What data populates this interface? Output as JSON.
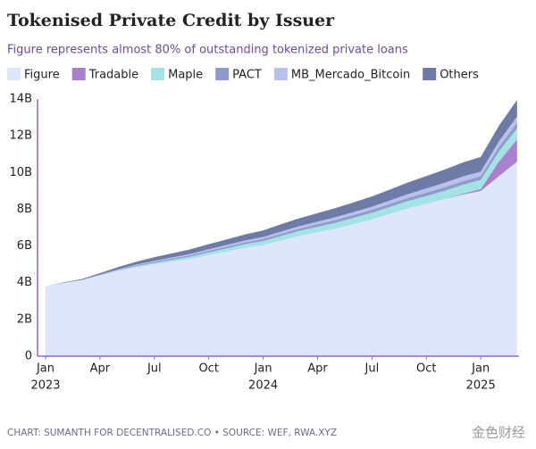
{
  "chart_data": {
    "type": "stacked_area",
    "title": "Tokenised Private Credit by Issuer",
    "subtitle": "Figure represents almost 80% of outstanding tokenized private loans",
    "source": "CHART: SUMANTH FOR DECENTRALISED.CO • SOURCE: WEF, RWA.XYZ",
    "watermark": "金色财经",
    "x": [
      "2023-01",
      "2023-02",
      "2023-03",
      "2023-04",
      "2023-05",
      "2023-06",
      "2023-07",
      "2023-08",
      "2023-09",
      "2023-10",
      "2023-11",
      "2023-12",
      "2024-01",
      "2024-02",
      "2024-03",
      "2024-04",
      "2024-05",
      "2024-06",
      "2024-07",
      "2024-08",
      "2024-09",
      "2024-10",
      "2024-11",
      "2024-12",
      "2025-01",
      "2025-02",
      "2025-03"
    ],
    "series": [
      {
        "name": "Figure",
        "color": "#dde6fa",
        "values": [
          3.8,
          4.0,
          4.15,
          4.4,
          4.65,
          4.85,
          5.0,
          5.15,
          5.3,
          5.5,
          5.7,
          5.9,
          6.05,
          6.3,
          6.55,
          6.75,
          6.95,
          7.2,
          7.45,
          7.75,
          8.05,
          8.3,
          8.55,
          8.8,
          9.0,
          9.8,
          10.6
        ]
      },
      {
        "name": "Tradable",
        "color": "#a97fce",
        "values": [
          0,
          0,
          0,
          0,
          0,
          0,
          0,
          0,
          0,
          0,
          0,
          0,
          0,
          0,
          0,
          0,
          0,
          0,
          0,
          0,
          0,
          0,
          0,
          0.05,
          0.1,
          0.8,
          1.2
        ]
      },
      {
        "name": "Maple",
        "color": "#a3e3e3",
        "values": [
          0,
          0,
          0,
          0,
          0.02,
          0.05,
          0.08,
          0.1,
          0.12,
          0.15,
          0.17,
          0.2,
          0.22,
          0.25,
          0.27,
          0.3,
          0.32,
          0.34,
          0.36,
          0.38,
          0.4,
          0.42,
          0.45,
          0.48,
          0.5,
          0.55,
          0.6
        ]
      },
      {
        "name": "PACT",
        "color": "#8f9ccb",
        "values": [
          0,
          0,
          0,
          0.02,
          0.03,
          0.05,
          0.06,
          0.07,
          0.08,
          0.09,
          0.1,
          0.1,
          0.12,
          0.12,
          0.13,
          0.14,
          0.15,
          0.15,
          0.16,
          0.17,
          0.18,
          0.19,
          0.2,
          0.2,
          0.2,
          0.25,
          0.3
        ]
      },
      {
        "name": "MB_Mercado_Bitcoin",
        "color": "#b7c1ec",
        "values": [
          0,
          0,
          0,
          0.02,
          0.03,
          0.04,
          0.05,
          0.06,
          0.07,
          0.08,
          0.09,
          0.1,
          0.1,
          0.12,
          0.13,
          0.14,
          0.15,
          0.16,
          0.17,
          0.18,
          0.2,
          0.22,
          0.24,
          0.25,
          0.25,
          0.3,
          0.35
        ]
      },
      {
        "name": "Others",
        "color": "#6d7ba6",
        "values": [
          0,
          0.02,
          0.05,
          0.08,
          0.12,
          0.15,
          0.2,
          0.22,
          0.25,
          0.28,
          0.3,
          0.33,
          0.36,
          0.4,
          0.43,
          0.46,
          0.5,
          0.53,
          0.56,
          0.6,
          0.64,
          0.68,
          0.72,
          0.76,
          0.8,
          0.85,
          0.9
        ]
      }
    ],
    "ylim": [
      0,
      14
    ],
    "yticks": [
      0,
      {
        "value": 2,
        "label": "2B"
      },
      {
        "value": 4,
        "label": "4B"
      },
      {
        "value": 6,
        "label": "6B"
      },
      {
        "value": 8,
        "label": "8B"
      },
      {
        "value": 10,
        "label": "10B"
      },
      {
        "value": 12,
        "label": "12B"
      },
      {
        "value": 14,
        "label": "14B"
      }
    ],
    "xticks": [
      {
        "value": "2023-01",
        "label": "Jan"
      },
      {
        "value": "2023-04",
        "label": "Apr"
      },
      {
        "value": "2023-07",
        "label": "Jul"
      },
      {
        "value": "2023-10",
        "label": "Oct"
      },
      {
        "value": "2024-01",
        "label": "Jan"
      },
      {
        "value": "2024-04",
        "label": "Apr"
      },
      {
        "value": "2024-07",
        "label": "Jul"
      },
      {
        "value": "2024-10",
        "label": "Oct"
      },
      {
        "value": "2025-01",
        "label": "Jan"
      }
    ],
    "year_labels": [
      {
        "value": "2023-01",
        "label": "2023"
      },
      {
        "value": "2024-01",
        "label": "2024"
      },
      {
        "value": "2025-01",
        "label": "2025"
      }
    ],
    "grid": false,
    "axis_color": "#8e6cc0"
  }
}
